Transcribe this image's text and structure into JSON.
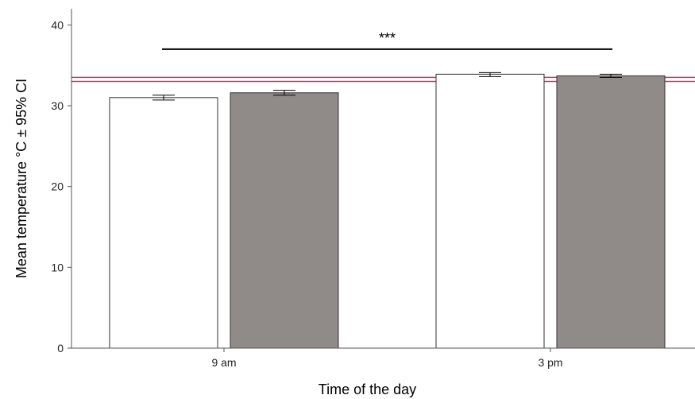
{
  "chart_data": {
    "type": "bar",
    "title": "",
    "xlabel": "Time of the day",
    "ylabel": "Mean temperature °C ± 95% CI",
    "categories": [
      "9 am",
      "3 pm"
    ],
    "ylim": [
      0,
      42
    ],
    "yticks": [
      0,
      10,
      20,
      30,
      40
    ],
    "grid": false,
    "legend": "none",
    "series": [
      {
        "color": "#ffffff",
        "values": [
          31.0,
          33.9
        ],
        "ci_low": [
          30.7,
          33.6
        ],
        "ci_high": [
          31.3,
          34.1
        ]
      },
      {
        "color": "#908a89",
        "values": [
          31.6,
          33.7
        ],
        "ci_low": [
          31.3,
          33.5
        ],
        "ci_high": [
          31.9,
          33.9
        ]
      }
    ],
    "reference_lines": [
      {
        "y": 33.5,
        "color": "#c0406a"
      },
      {
        "y": 33.0,
        "color": "#c0406a"
      }
    ],
    "annotations": [
      {
        "text": "***",
        "from_category": 0,
        "to_category": 1,
        "y": 37.0
      }
    ]
  }
}
